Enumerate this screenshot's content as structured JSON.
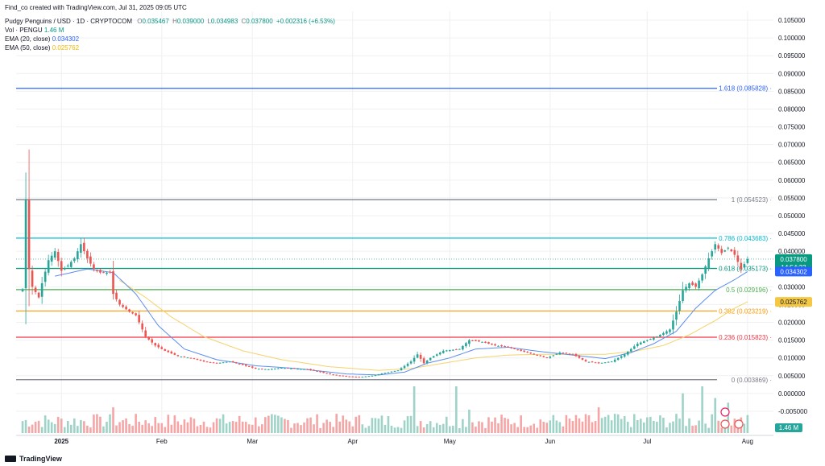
{
  "header": {
    "created_by": "Find_co created with TradingView.com, Jul 31, 2025 09:05 UTC",
    "symbol": "Pudgy Penguins / USD · 1D · CRYPTOCOM",
    "o_label": "O",
    "o": "0.035467",
    "h_label": "H",
    "h": "0.039000",
    "l_label": "L",
    "l": "0.034983",
    "c_label": "C",
    "c": "0.037800",
    "change": "+0.002316 (+6.53%)",
    "vol_label": "Vol · PENGU",
    "vol": "1.46 M",
    "ema20_label": "EMA (20, close)",
    "ema20": "0.034302",
    "ema50_label": "EMA (50, close)",
    "ema50": "0.025762"
  },
  "footer": {
    "brand": "TradingView"
  },
  "chart_data": {
    "type": "candlestick",
    "y_axis": [
      "0.105000",
      "0.100000",
      "0.095000",
      "0.090000",
      "0.085000",
      "0.080000",
      "0.075000",
      "0.070000",
      "0.065000",
      "0.060000",
      "0.055000",
      "0.050000",
      "0.045000",
      "0.040000",
      "0.035000",
      "0.030000",
      "0.025000",
      "0.020000",
      "0.015000",
      "0.010000",
      "0.005000",
      "0.000000",
      "-0.005000"
    ],
    "ylim": [
      -0.0075,
      0.1075
    ],
    "x_ticks": [
      {
        "label": "2025",
        "x": 12
      },
      {
        "label": "Feb",
        "x": 43
      },
      {
        "label": "Mar",
        "x": 71
      },
      {
        "label": "Apr",
        "x": 102
      },
      {
        "label": "May",
        "x": 132
      },
      {
        "label": "Jun",
        "x": 163
      },
      {
        "label": "Jul",
        "x": 193
      },
      {
        "label": "Aug",
        "x": 224
      }
    ],
    "x_range": [
      -2,
      232
    ],
    "fib_levels": [
      {
        "ratio": "1.618",
        "value": 0.085828,
        "label": "1.618 (0.085828)",
        "color": "#2962ff"
      },
      {
        "ratio": "1",
        "value": 0.054523,
        "label": "1 (0.054523)",
        "color": "#787b86"
      },
      {
        "ratio": "0.786",
        "value": 0.043683,
        "label": "0.786 (0.043683)",
        "color": "#00bcd4"
      },
      {
        "ratio": "0.618",
        "value": 0.035173,
        "label": "0.618 (0.035173)",
        "color": "#089981"
      },
      {
        "ratio": "0.5",
        "value": 0.029196,
        "label": "0.5 (0.029196)",
        "color": "#4caf50"
      },
      {
        "ratio": "0.382",
        "value": 0.023219,
        "label": "0.382 (0.023219)",
        "color": "#ff9800"
      },
      {
        "ratio": "0.236",
        "value": 0.015823,
        "label": "0.236 (0.015823)",
        "color": "#f23645"
      },
      {
        "ratio": "0",
        "value": 0.003869,
        "label": "0 (0.003869)",
        "color": "#787b86"
      }
    ],
    "price_anchors": [
      [
        0,
        0.0293
      ],
      [
        1,
        0.0545
      ],
      [
        2,
        0.035
      ],
      [
        3,
        0.03
      ],
      [
        5,
        0.027
      ],
      [
        6,
        0.031
      ],
      [
        8,
        0.0375
      ],
      [
        10,
        0.04
      ],
      [
        12,
        0.0345
      ],
      [
        14,
        0.036
      ],
      [
        16,
        0.038
      ],
      [
        18,
        0.042
      ],
      [
        20,
        0.038
      ],
      [
        22,
        0.035
      ],
      [
        24,
        0.034
      ],
      [
        27,
        0.034
      ],
      [
        28,
        0.028
      ],
      [
        30,
        0.025
      ],
      [
        33,
        0.023
      ],
      [
        35,
        0.022
      ],
      [
        38,
        0.016
      ],
      [
        41,
        0.0135
      ],
      [
        44,
        0.012
      ],
      [
        48,
        0.0105
      ],
      [
        52,
        0.01
      ],
      [
        56,
        0.009
      ],
      [
        60,
        0.0085
      ],
      [
        64,
        0.009
      ],
      [
        68,
        0.008
      ],
      [
        72,
        0.007
      ],
      [
        76,
        0.0068
      ],
      [
        80,
        0.0072
      ],
      [
        84,
        0.007
      ],
      [
        88,
        0.0068
      ],
      [
        92,
        0.006
      ],
      [
        96,
        0.0052
      ],
      [
        100,
        0.0048
      ],
      [
        104,
        0.0046
      ],
      [
        108,
        0.005
      ],
      [
        112,
        0.0058
      ],
      [
        116,
        0.0065
      ],
      [
        120,
        0.009
      ],
      [
        122,
        0.011
      ],
      [
        124,
        0.0085
      ],
      [
        126,
        0.01
      ],
      [
        130,
        0.012
      ],
      [
        135,
        0.0125
      ],
      [
        138,
        0.015
      ],
      [
        142,
        0.0145
      ],
      [
        146,
        0.0135
      ],
      [
        150,
        0.013
      ],
      [
        154,
        0.012
      ],
      [
        158,
        0.011
      ],
      [
        162,
        0.01
      ],
      [
        166,
        0.0115
      ],
      [
        170,
        0.011
      ],
      [
        174,
        0.009
      ],
      [
        178,
        0.0085
      ],
      [
        182,
        0.009
      ],
      [
        186,
        0.011
      ],
      [
        190,
        0.014
      ],
      [
        193,
        0.015
      ],
      [
        196,
        0.016
      ],
      [
        200,
        0.018
      ],
      [
        202,
        0.023
      ],
      [
        204,
        0.029
      ],
      [
        206,
        0.031
      ],
      [
        208,
        0.03
      ],
      [
        210,
        0.0335
      ],
      [
        212,
        0.038
      ],
      [
        214,
        0.042
      ],
      [
        216,
        0.0395
      ],
      [
        218,
        0.041
      ],
      [
        220,
        0.039
      ],
      [
        222,
        0.035
      ],
      [
        224,
        0.0378
      ]
    ],
    "ema20_anchors": [
      [
        10,
        0.033
      ],
      [
        20,
        0.035
      ],
      [
        28,
        0.034
      ],
      [
        35,
        0.028
      ],
      [
        42,
        0.019
      ],
      [
        50,
        0.0125
      ],
      [
        60,
        0.0095
      ],
      [
        72,
        0.0078
      ],
      [
        85,
        0.007
      ],
      [
        100,
        0.0055
      ],
      [
        110,
        0.0052
      ],
      [
        118,
        0.006
      ],
      [
        125,
        0.0085
      ],
      [
        132,
        0.01
      ],
      [
        140,
        0.0125
      ],
      [
        150,
        0.013
      ],
      [
        160,
        0.0118
      ],
      [
        170,
        0.0108
      ],
      [
        180,
        0.0098
      ],
      [
        188,
        0.0115
      ],
      [
        195,
        0.014
      ],
      [
        202,
        0.0175
      ],
      [
        208,
        0.024
      ],
      [
        214,
        0.029
      ],
      [
        220,
        0.032
      ],
      [
        224,
        0.0343
      ]
    ],
    "ema50_anchors": [
      [
        30,
        0.0318
      ],
      [
        38,
        0.027
      ],
      [
        46,
        0.0215
      ],
      [
        56,
        0.016
      ],
      [
        68,
        0.012
      ],
      [
        80,
        0.0095
      ],
      [
        95,
        0.0075
      ],
      [
        110,
        0.0065
      ],
      [
        120,
        0.007
      ],
      [
        130,
        0.0085
      ],
      [
        140,
        0.01
      ],
      [
        150,
        0.0108
      ],
      [
        160,
        0.011
      ],
      [
        170,
        0.011
      ],
      [
        180,
        0.011
      ],
      [
        190,
        0.012
      ],
      [
        198,
        0.0135
      ],
      [
        206,
        0.0165
      ],
      [
        214,
        0.0205
      ],
      [
        220,
        0.024
      ],
      [
        224,
        0.0258
      ]
    ],
    "volume_spikes": [
      [
        121,
        1.0
      ],
      [
        134,
        1.0
      ],
      [
        204,
        0.85
      ],
      [
        210,
        1.0
      ],
      [
        214,
        0.75
      ],
      [
        218,
        0.65
      ],
      [
        178,
        0.55
      ],
      [
        184,
        0.4
      ],
      [
        28,
        0.55
      ],
      [
        138,
        0.5
      ],
      [
        24,
        0.35
      ]
    ],
    "last_price": {
      "value": 0.0378,
      "label": "0.037800",
      "countdown": "14:54:33",
      "color": "#089981"
    },
    "ema20_last": {
      "value": 0.034302,
      "label": "0.034302",
      "color": "#2962ff"
    },
    "ema50_last": {
      "value": 0.025762,
      "label": "0.025762",
      "color": "#f5c843"
    },
    "vol_last": {
      "label": "1.46 M",
      "color": "#26a69a"
    },
    "colors": {
      "up": "#26a69a",
      "down": "#ef5350",
      "vol_up": "#9fd3c7",
      "vol_down": "#f4a6a6",
      "ema20": "#5b8def",
      "ema50": "#f5d36b",
      "grid": "#eef0f3"
    }
  }
}
